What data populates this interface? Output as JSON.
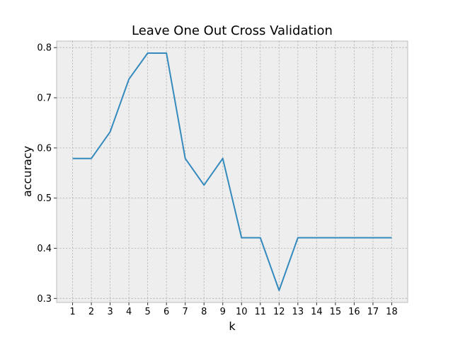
{
  "chart_data": {
    "type": "line",
    "title": "Leave One Out Cross Validation",
    "xlabel": "k",
    "ylabel": "accuracy",
    "x": [
      1,
      2,
      3,
      4,
      5,
      6,
      7,
      8,
      9,
      10,
      11,
      12,
      13,
      14,
      15,
      16,
      17,
      18
    ],
    "series": [
      {
        "values": [
          0.579,
          0.579,
          0.632,
          0.737,
          0.789,
          0.789,
          0.579,
          0.526,
          0.579,
          0.421,
          0.421,
          0.316,
          0.421,
          0.421,
          0.421,
          0.421,
          0.421,
          0.421
        ]
      }
    ],
    "xticks": [
      "1",
      "2",
      "3",
      "4",
      "5",
      "6",
      "7",
      "8",
      "9",
      "10",
      "11",
      "12",
      "13",
      "14",
      "15",
      "16",
      "17",
      "18"
    ],
    "yticks": [
      "0.3",
      "0.4",
      "0.5",
      "0.6",
      "0.7",
      "0.8"
    ],
    "ylim": [
      0.292,
      0.813
    ],
    "xlim": [
      0.15,
      18.85
    ],
    "grid": true,
    "colors": {
      "line": "#348abd",
      "axes_background": "#eeeeee",
      "grid": "#b0b0b0"
    }
  }
}
